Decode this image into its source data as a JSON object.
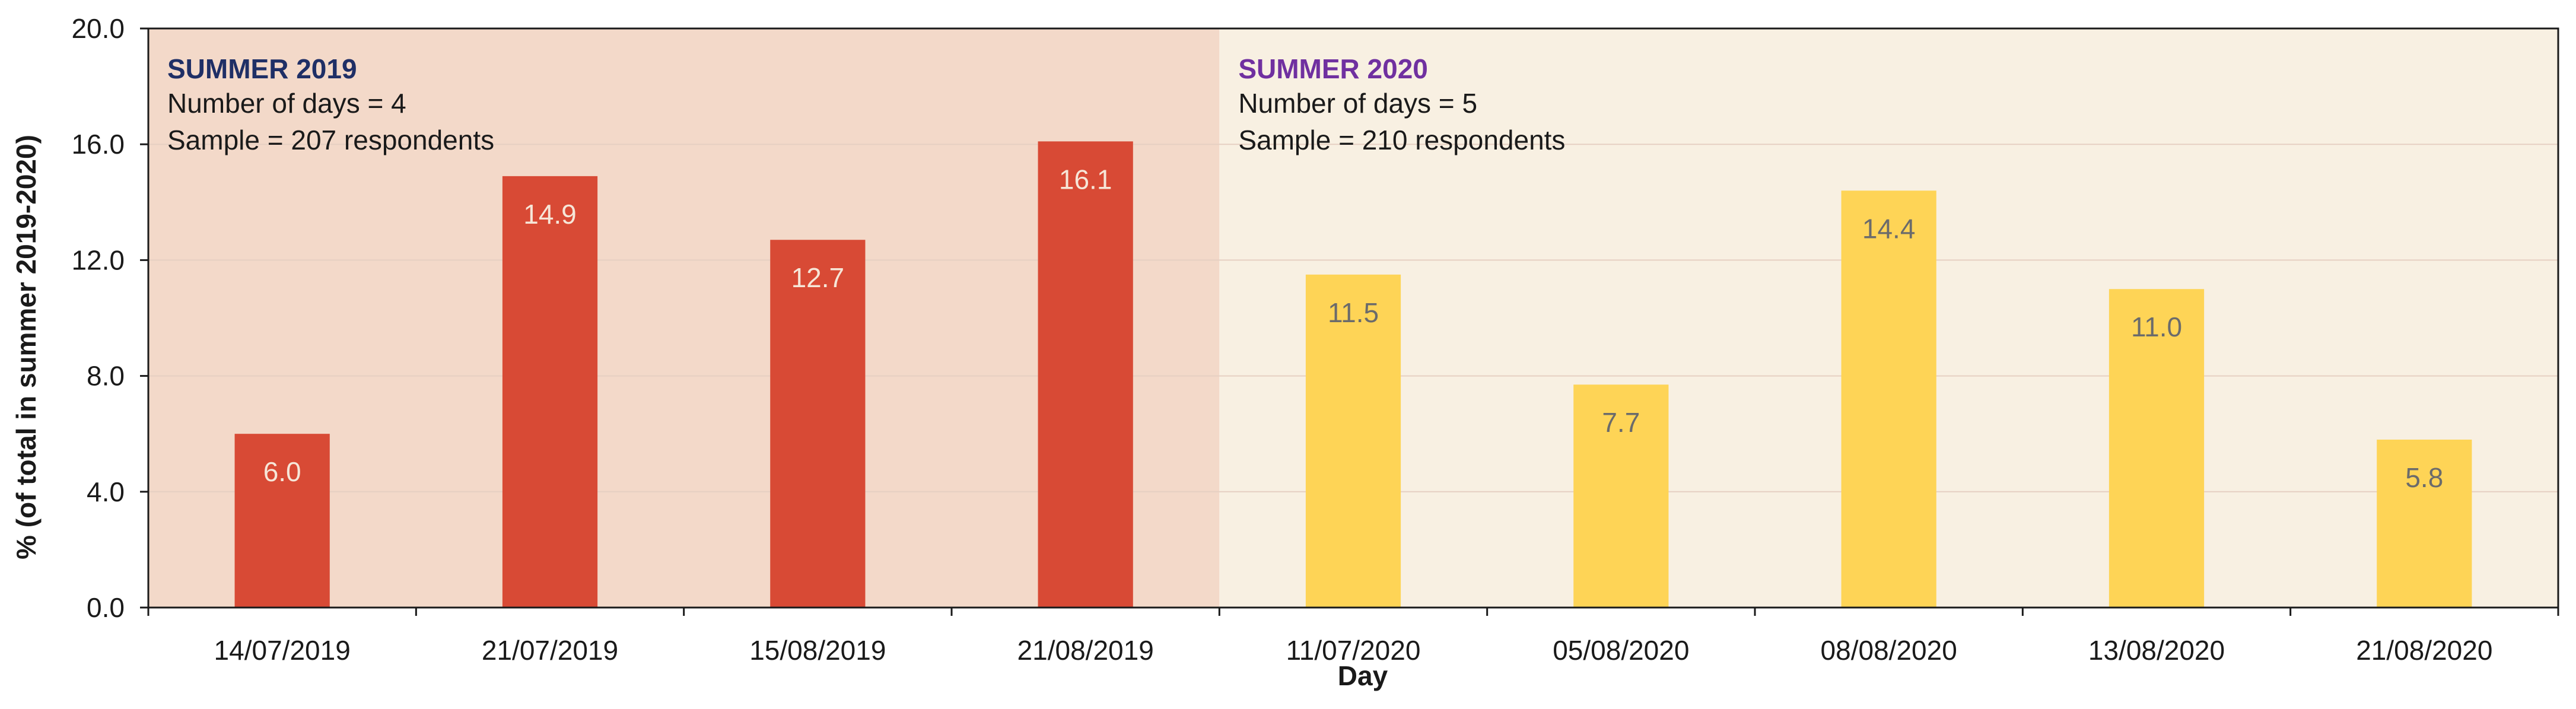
{
  "chart_data": {
    "type": "bar",
    "title": "",
    "xlabel": "Day",
    "ylabel": "% (of total in summer 2019-2020)",
    "ylim": [
      0,
      20
    ],
    "yticks": [
      "0.0",
      "4.0",
      "8.0",
      "12.0",
      "16.0",
      "20.0"
    ],
    "grid": true,
    "categories": [
      "14/07/2019",
      "21/07/2019",
      "15/08/2019",
      "21/08/2019",
      "11/07/2020",
      "05/08/2020",
      "08/08/2020",
      "13/08/2020",
      "21/08/2020"
    ],
    "values": [
      6.0,
      14.9,
      12.7,
      16.1,
      11.5,
      7.7,
      14.4,
      11.0,
      5.8
    ],
    "value_labels": [
      "6.0",
      "14.9",
      "12.7",
      "16.1",
      "11.5",
      "7.7",
      "14.4",
      "11.0",
      "5.8"
    ],
    "groups": [
      {
        "title": "SUMMER 2019",
        "lines": [
          "Number of days = 4",
          "Sample = 207 respondents"
        ],
        "count": 4,
        "bar_color": "#d84a35",
        "background": "#f3d9c9",
        "title_color": "#1f2f66",
        "label_color": "#f6e6d8"
      },
      {
        "title": "SUMMER 2020",
        "lines": [
          "Number of days = 5",
          "Sample = 210 respondents"
        ],
        "count": 5,
        "bar_color": "#fed456",
        "background": "#f8f0e2",
        "title_color": "#7030a0",
        "label_color": "#6b6b6b"
      }
    ]
  }
}
